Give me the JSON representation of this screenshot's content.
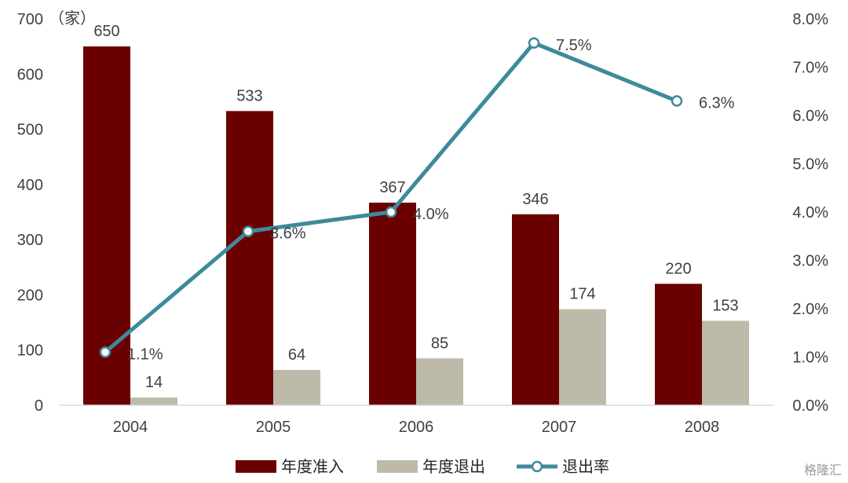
{
  "chart_data": {
    "type": "bar",
    "categories": [
      "2004",
      "2005",
      "2006",
      "2007",
      "2008"
    ],
    "unit_label": "（家）",
    "ylim_left": [
      0,
      700
    ],
    "yticks_left": [
      0,
      100,
      200,
      300,
      400,
      500,
      600,
      700
    ],
    "ylim_right": [
      0,
      8.0
    ],
    "yticks_right": [
      "0.0%",
      "1.0%",
      "2.0%",
      "3.0%",
      "4.0%",
      "5.0%",
      "6.0%",
      "7.0%",
      "8.0%"
    ],
    "series": [
      {
        "name": "年度准入",
        "type": "bar",
        "axis": "left",
        "color": "#6b0000",
        "values": [
          650,
          533,
          367,
          346,
          220
        ],
        "labels": [
          "650",
          "533",
          "367",
          "346",
          "220"
        ]
      },
      {
        "name": "年度退出",
        "type": "bar",
        "axis": "left",
        "color": "#bdbaa9",
        "values": [
          14,
          64,
          85,
          174,
          153
        ],
        "labels": [
          "14",
          "64",
          "85",
          "174",
          "153"
        ]
      },
      {
        "name": "退出率",
        "type": "line",
        "axis": "right",
        "color": "#3e8a9c",
        "values": [
          1.1,
          3.6,
          4.0,
          7.5,
          6.3
        ],
        "labels": [
          "1.1%",
          "3.6%",
          "4.0%",
          "7.5%",
          "6.3%"
        ]
      }
    ],
    "legend_position": "bottom",
    "grid": false
  },
  "watermark": "格隆汇"
}
